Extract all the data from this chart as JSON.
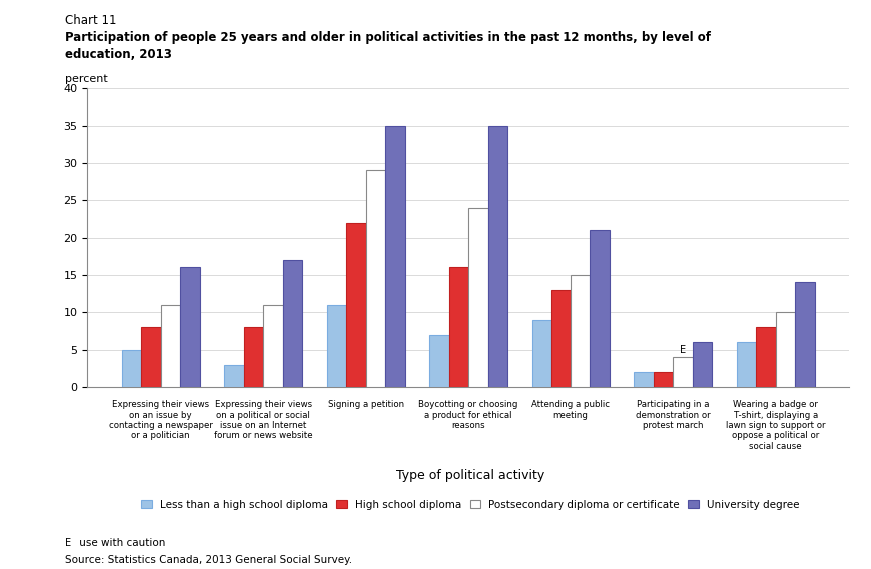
{
  "title_line1": "Chart 11",
  "title_line2": "Participation of people 25 years and older in political activities in the past 12 months, by level of",
  "title_line3": "education, 2013",
  "ylabel": "percent",
  "xlabel": "Type of political activity",
  "ylim": [
    0,
    40
  ],
  "yticks": [
    0,
    5,
    10,
    15,
    20,
    25,
    30,
    35,
    40
  ],
  "categories": [
    "Expressing their views\non an issue by\ncontacting a newspaper\nor a politician",
    "Expressing their views\non a political or social\nissue on an Internet\nforum or news website",
    "Signing a petition",
    "Boycotting or choosing\na product for ethical\nreasons",
    "Attending a public\nmeeting",
    "Participating in a\ndemonstration or\nprotest march",
    "Wearing a badge or\nT-shirt, displaying a\nlawn sign to support or\noppose a political or\nsocial cause"
  ],
  "series": {
    "Less than a high school diploma": [
      5,
      3,
      11,
      7,
      9,
      2,
      6
    ],
    "High school diploma": [
      8,
      8,
      22,
      16,
      13,
      2,
      8
    ],
    "Postsecondary diploma or certificate": [
      11,
      11,
      29,
      24,
      15,
      4,
      10
    ],
    "University degree": [
      16,
      17,
      35,
      35,
      21,
      6,
      14
    ]
  },
  "colors": {
    "Less than a high school diploma": "#9dc3e6",
    "High school diploma": "#e03030",
    "Postsecondary diploma or certificate": "#ffffff",
    "University degree": "#7070b8"
  },
  "bar_edge_colors": {
    "Less than a high school diploma": "#7aace0",
    "High school diploma": "#c02020",
    "Postsecondary diploma or certificate": "#888888",
    "University degree": "#5050a0"
  },
  "footnote_e": "E",
  "footnote_text": " use with caution",
  "source": "Source: Statistics Canada, 2013 General Social Survey.",
  "caution_category_index": 5,
  "background_color": "#ffffff"
}
